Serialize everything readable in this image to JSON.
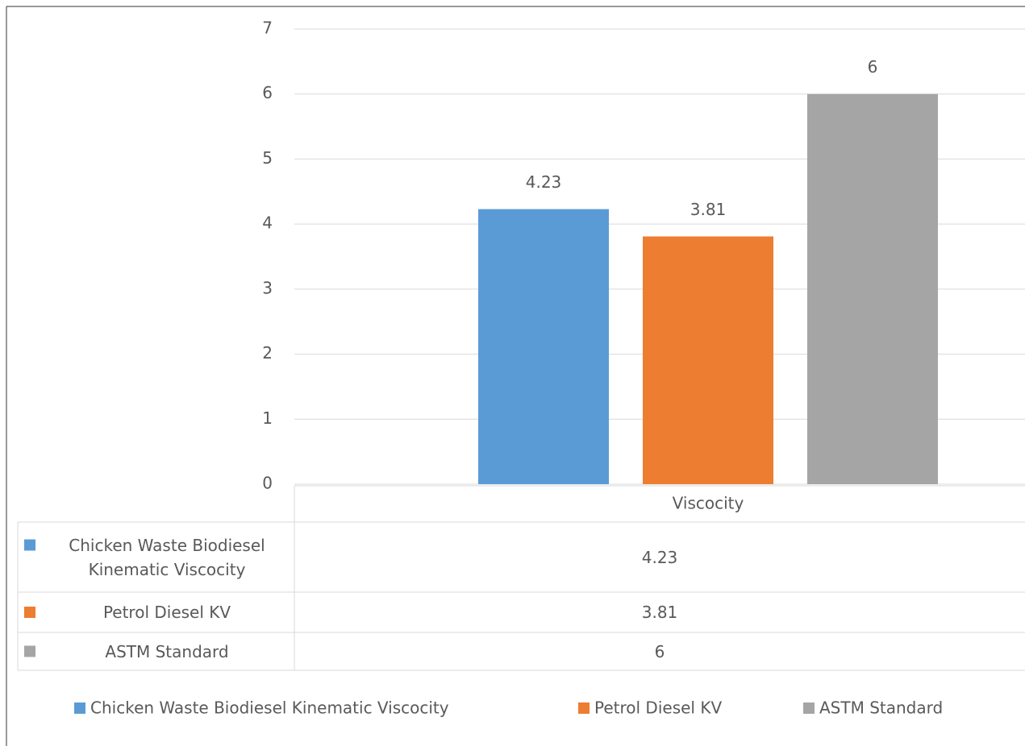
{
  "chart_data": {
    "type": "bar",
    "categories": [
      "Viscocity"
    ],
    "series": [
      {
        "name": "Chicken Waste Biodiesel Kinematic Viscocity",
        "color": "#5b9bd5",
        "values": [
          4.23
        ]
      },
      {
        "name": "Petrol Diesel KV",
        "color": "#ed7d31",
        "values": [
          3.81
        ]
      },
      {
        "name": "ASTM Standard",
        "color": "#a5a5a5",
        "values": [
          6
        ]
      }
    ],
    "ylim": [
      0,
      7
    ],
    "yticks": [
      0,
      1,
      2,
      3,
      4,
      5,
      6,
      7
    ],
    "grid": true,
    "legend": "bottom",
    "data_table": true
  }
}
